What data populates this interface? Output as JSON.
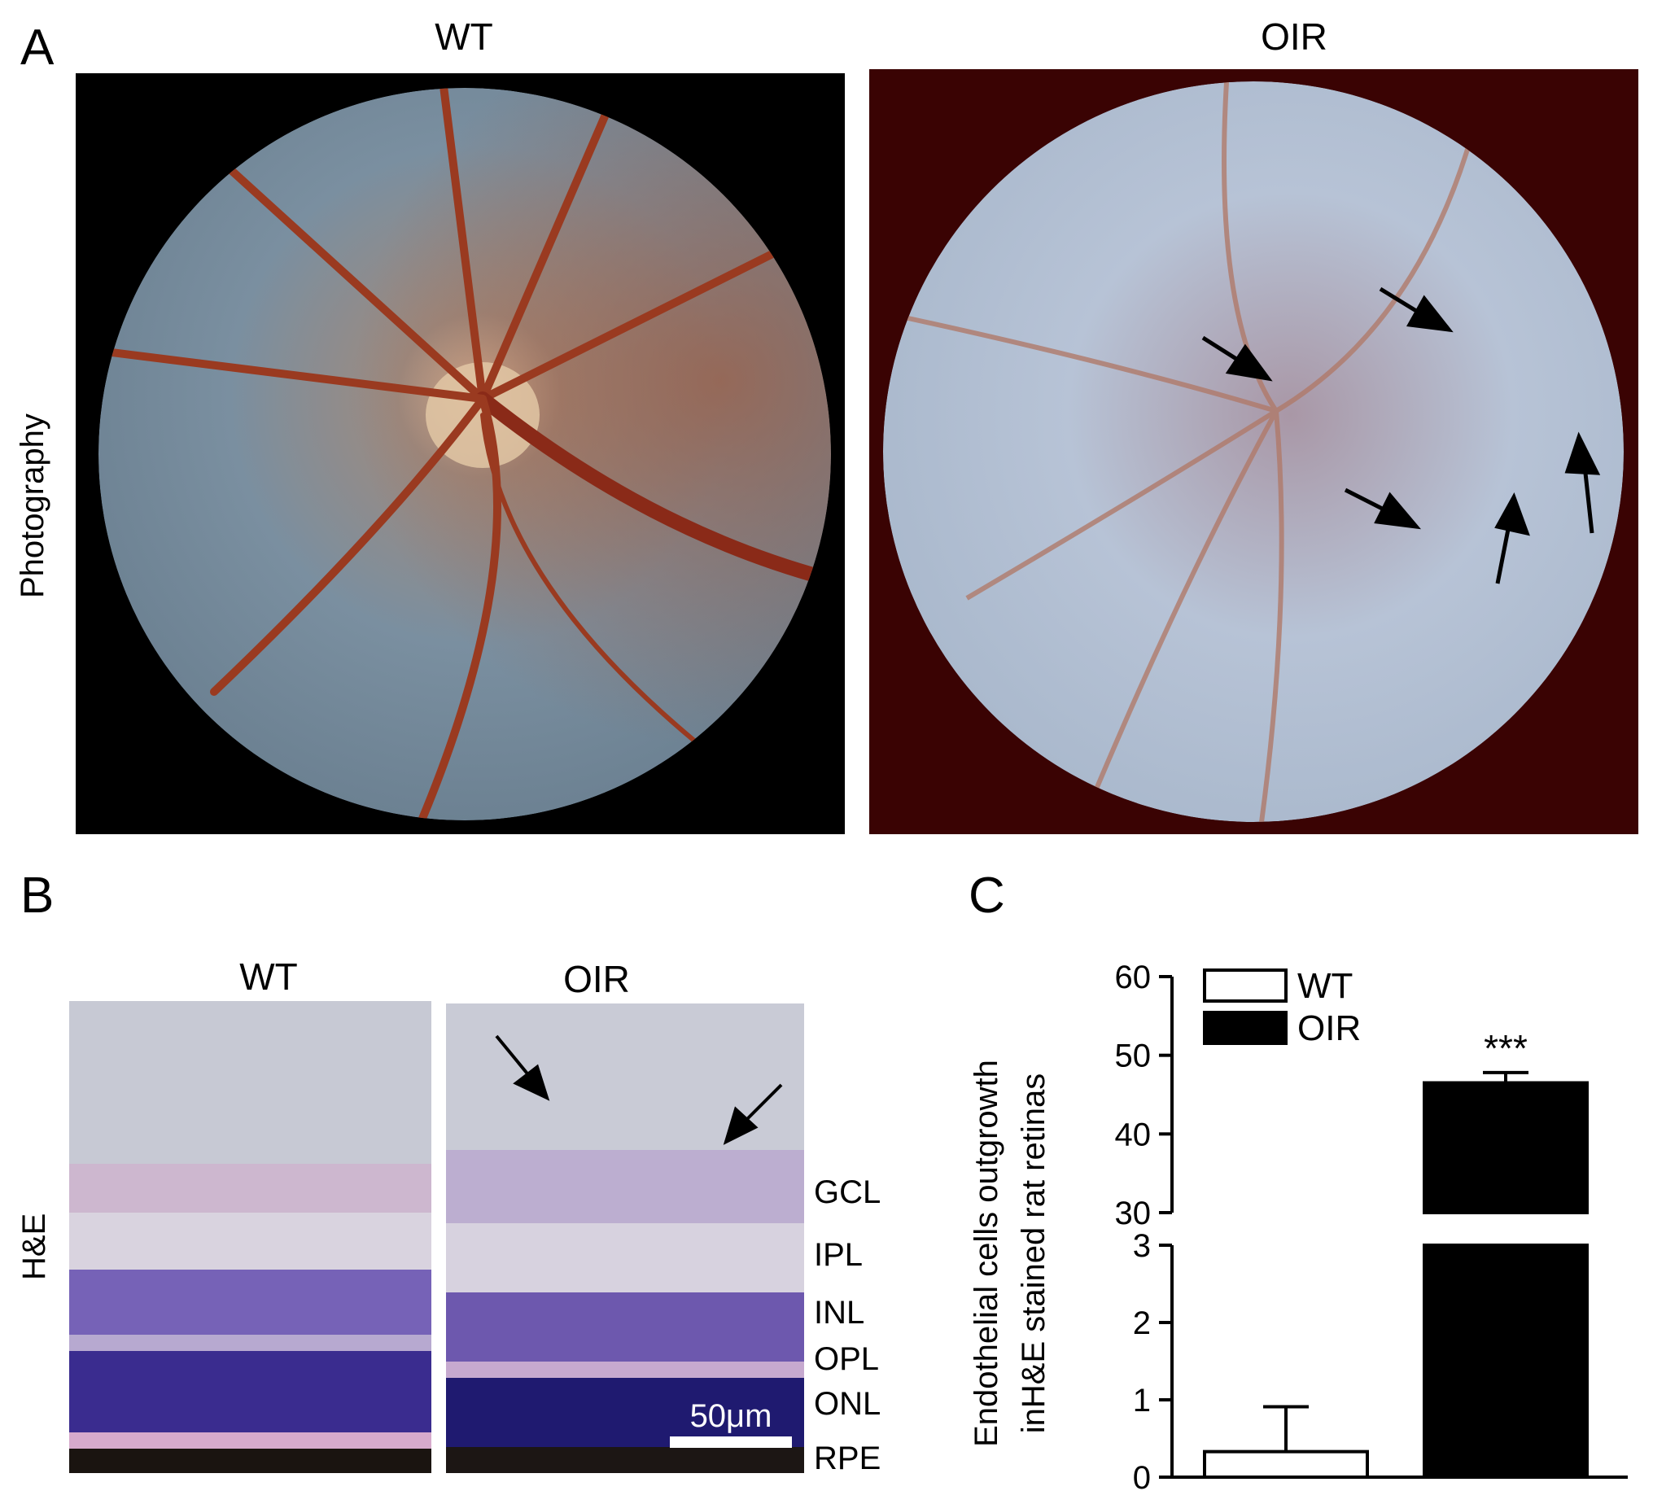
{
  "panel_a": {
    "letter": "A",
    "row_label": "Photography",
    "titles": {
      "wt": "WT",
      "oir": "OIR"
    },
    "colors": {
      "wt_background": "#000000",
      "oir_background": "#3a0303",
      "vessel": "#9a3a20"
    }
  },
  "panel_b": {
    "letter": "B",
    "row_label": "H&E",
    "titles": {
      "wt": "WT",
      "oir": "OIR"
    },
    "layers": [
      "GCL",
      "IPL",
      "INL",
      "OPL",
      "ONL",
      "RPE"
    ],
    "scale_bar": "50μm"
  },
  "panel_c": {
    "letter": "C",
    "chart_data": {
      "type": "bar",
      "categories": [
        "WT",
        "OIR"
      ],
      "values": [
        0.33,
        46.5
      ],
      "errors": [
        0.58,
        1.3
      ],
      "fills": [
        "#ffffff",
        "#000000"
      ],
      "ylabel_line1": "Endothelial cells outgrowth",
      "ylabel_line2": "inH&E stained rat retinas",
      "legend": [
        "WT",
        "OIR"
      ],
      "legend_position": "top-left",
      "yaxis_broken": true,
      "ylim_lower": [
        0,
        3
      ],
      "ylim_upper": [
        30,
        60
      ],
      "ticks_lower": [
        "0",
        "1",
        "2",
        "3"
      ],
      "ticks_upper": [
        "30",
        "40",
        "50",
        "60"
      ],
      "significance": "***",
      "grid": false
    }
  }
}
